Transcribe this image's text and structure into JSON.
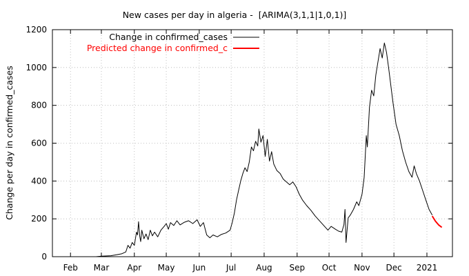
{
  "chart_data": {
    "type": "line",
    "title": "New cases per day in algeria -  [ARIMA(3,1,1|1,0,1)]",
    "xlabel": "",
    "ylabel": "Change per day in confirmed_cases",
    "ylim": [
      0,
      1200
    ],
    "y_ticks": [
      "0",
      "200",
      "400",
      "600",
      "800",
      "1000",
      "1200"
    ],
    "x_ticks": [
      "Feb",
      "Mar",
      "Apr",
      "May",
      "Jun",
      "Jul",
      "Aug",
      "Sep",
      "Oct",
      "Nov",
      "Dec",
      "2021"
    ],
    "grid": true,
    "legend_position": "top-right",
    "series": [
      {
        "name": "Change in confirmed_cases",
        "color": "#000000",
        "points": [
          [
            "2020-01-20",
            0
          ],
          [
            "2020-02-25",
            0
          ],
          [
            "2020-03-01",
            3
          ],
          [
            "2020-03-10",
            5
          ],
          [
            "2020-03-15",
            10
          ],
          [
            "2020-03-20",
            15
          ],
          [
            "2020-03-24",
            25
          ],
          [
            "2020-03-26",
            60
          ],
          [
            "2020-03-28",
            45
          ],
          [
            "2020-03-30",
            75
          ],
          [
            "2020-04-01",
            60
          ],
          [
            "2020-04-03",
            130
          ],
          [
            "2020-04-04",
            115
          ],
          [
            "2020-04-05",
            185
          ],
          [
            "2020-04-06",
            110
          ],
          [
            "2020-04-07",
            80
          ],
          [
            "2020-04-08",
            140
          ],
          [
            "2020-04-10",
            95
          ],
          [
            "2020-04-12",
            120
          ],
          [
            "2020-04-14",
            90
          ],
          [
            "2020-04-16",
            140
          ],
          [
            "2020-04-18",
            110
          ],
          [
            "2020-04-20",
            130
          ],
          [
            "2020-04-23",
            105
          ],
          [
            "2020-04-26",
            140
          ],
          [
            "2020-04-29",
            160
          ],
          [
            "2020-05-01",
            175
          ],
          [
            "2020-05-03",
            145
          ],
          [
            "2020-05-05",
            180
          ],
          [
            "2020-05-08",
            165
          ],
          [
            "2020-05-11",
            190
          ],
          [
            "2020-05-14",
            168
          ],
          [
            "2020-05-18",
            182
          ],
          [
            "2020-05-22",
            190
          ],
          [
            "2020-05-26",
            175
          ],
          [
            "2020-05-30",
            195
          ],
          [
            "2020-06-02",
            160
          ],
          [
            "2020-06-05",
            180
          ],
          [
            "2020-06-08",
            115
          ],
          [
            "2020-06-11",
            100
          ],
          [
            "2020-06-14",
            115
          ],
          [
            "2020-06-18",
            105
          ],
          [
            "2020-06-22",
            118
          ],
          [
            "2020-06-26",
            125
          ],
          [
            "2020-06-30",
            140
          ],
          [
            "2020-07-02",
            180
          ],
          [
            "2020-07-04",
            230
          ],
          [
            "2020-07-06",
            300
          ],
          [
            "2020-07-08",
            350
          ],
          [
            "2020-07-10",
            400
          ],
          [
            "2020-07-12",
            440
          ],
          [
            "2020-07-14",
            470
          ],
          [
            "2020-07-16",
            450
          ],
          [
            "2020-07-18",
            500
          ],
          [
            "2020-07-20",
            580
          ],
          [
            "2020-07-22",
            560
          ],
          [
            "2020-07-24",
            610
          ],
          [
            "2020-07-26",
            585
          ],
          [
            "2020-07-27",
            675
          ],
          [
            "2020-07-29",
            605
          ],
          [
            "2020-07-31",
            640
          ],
          [
            "2020-08-02",
            530
          ],
          [
            "2020-08-04",
            620
          ],
          [
            "2020-08-06",
            505
          ],
          [
            "2020-08-08",
            555
          ],
          [
            "2020-08-10",
            490
          ],
          [
            "2020-08-13",
            455
          ],
          [
            "2020-08-16",
            440
          ],
          [
            "2020-08-19",
            410
          ],
          [
            "2020-08-22",
            395
          ],
          [
            "2020-08-25",
            380
          ],
          [
            "2020-08-28",
            395
          ],
          [
            "2020-08-31",
            370
          ],
          [
            "2020-09-03",
            330
          ],
          [
            "2020-09-06",
            300
          ],
          [
            "2020-09-10",
            270
          ],
          [
            "2020-09-14",
            245
          ],
          [
            "2020-09-18",
            215
          ],
          [
            "2020-09-22",
            190
          ],
          [
            "2020-09-26",
            165
          ],
          [
            "2020-09-30",
            140
          ],
          [
            "2020-10-03",
            160
          ],
          [
            "2020-10-07",
            145
          ],
          [
            "2020-10-10",
            135
          ],
          [
            "2020-10-13",
            130
          ],
          [
            "2020-10-15",
            170
          ],
          [
            "2020-10-16",
            250
          ],
          [
            "2020-10-17",
            75
          ],
          [
            "2020-10-19",
            205
          ],
          [
            "2020-10-21",
            220
          ],
          [
            "2020-10-24",
            250
          ],
          [
            "2020-10-27",
            290
          ],
          [
            "2020-10-29",
            270
          ],
          [
            "2020-11-01",
            330
          ],
          [
            "2020-11-03",
            420
          ],
          [
            "2020-11-05",
            640
          ],
          [
            "2020-11-06",
            580
          ],
          [
            "2020-11-08",
            790
          ],
          [
            "2020-11-10",
            880
          ],
          [
            "2020-11-12",
            850
          ],
          [
            "2020-11-14",
            960
          ],
          [
            "2020-11-16",
            1030
          ],
          [
            "2020-11-18",
            1100
          ],
          [
            "2020-11-20",
            1050
          ],
          [
            "2020-11-22",
            1130
          ],
          [
            "2020-11-24",
            1080
          ],
          [
            "2020-11-26",
            1000
          ],
          [
            "2020-11-28",
            910
          ],
          [
            "2020-11-30",
            820
          ],
          [
            "2020-12-03",
            700
          ],
          [
            "2020-12-06",
            640
          ],
          [
            "2020-12-09",
            560
          ],
          [
            "2020-12-12",
            500
          ],
          [
            "2020-12-15",
            450
          ],
          [
            "2020-12-18",
            420
          ],
          [
            "2020-12-20",
            480
          ],
          [
            "2020-12-22",
            440
          ],
          [
            "2020-12-25",
            400
          ],
          [
            "2020-12-28",
            350
          ],
          [
            "2020-12-31",
            300
          ],
          [
            "2021-01-03",
            250
          ],
          [
            "2021-01-06",
            220
          ]
        ]
      },
      {
        "name": "Predicted change in confirmed_c",
        "color": "#ff0000",
        "points": [
          [
            "2021-01-06",
            215
          ],
          [
            "2021-01-09",
            188
          ],
          [
            "2021-01-12",
            168
          ],
          [
            "2021-01-15",
            155
          ]
        ]
      }
    ]
  }
}
